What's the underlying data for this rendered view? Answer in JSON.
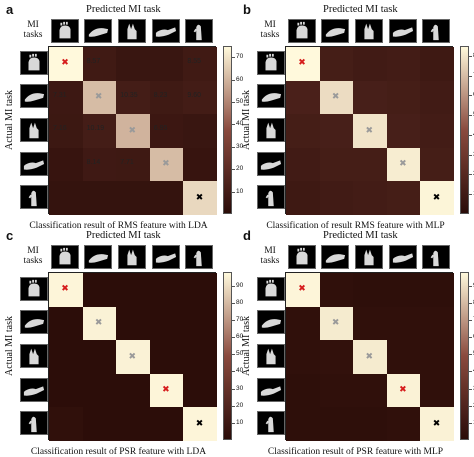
{
  "common": {
    "pred_title": "Predicted MI task",
    "mi_tasks": "MI tasks",
    "actual_label": "Actual MI task"
  },
  "colors": {
    "dark": "#2a0c08",
    "mid": "#8a4a3e",
    "light": "#fff9dc",
    "marker_red": "#d61c1c",
    "marker_gray": "#9a9a9a",
    "marker_black": "#000000"
  },
  "chart_data": [
    {
      "type": "heatmap",
      "panel": "a",
      "title": "Predicted MI task",
      "caption": "Classification result of RMS feature with LDA",
      "ylabel": "Actual MI task",
      "colorbar_range": [
        0,
        75
      ],
      "colorbar_ticks": [
        10,
        20,
        30,
        40,
        50,
        60,
        70
      ],
      "values": [
        [
          75,
          8.57,
          6,
          6,
          8.55
        ],
        [
          7.31,
          62,
          10.35,
          8.23,
          9.6
        ],
        [
          7.16,
          10.19,
          60,
          6.95,
          6
        ],
        [
          5,
          8.14,
          7.71,
          62,
          5
        ],
        [
          4,
          4,
          4,
          4,
          68
        ]
      ],
      "labels": [
        [
          "",
          "8.57",
          "",
          "",
          "8.55"
        ],
        [
          "7.31",
          "",
          "10.35",
          "8.23",
          "9.60"
        ],
        [
          "7.16",
          "10.19",
          "",
          "6.95",
          ""
        ],
        [
          "",
          "8.14",
          "7.71",
          "",
          ""
        ],
        [
          "",
          "",
          "",
          "",
          ""
        ]
      ],
      "markers": [
        "x-red",
        "x-gray",
        "x-gray",
        "x-gray",
        "x-black"
      ]
    },
    {
      "type": "heatmap",
      "panel": "b",
      "title": "Predicted MI task",
      "caption": "Classification of result RMS feature with MLP",
      "ylabel": "Actual MI task",
      "colorbar_range": [
        0,
        85
      ],
      "colorbar_ticks": [
        10,
        20,
        30,
        40,
        50,
        60,
        70,
        80
      ],
      "values": [
        [
          85,
          12,
          10,
          11,
          9
        ],
        [
          14,
          78,
          13,
          12,
          10
        ],
        [
          12,
          13,
          80,
          13,
          11
        ],
        [
          10,
          12,
          12,
          82,
          12
        ],
        [
          9,
          10,
          11,
          12,
          84
        ]
      ],
      "labels": [],
      "markers": [
        "x-red",
        "x-gray",
        "x-gray",
        "x-gray",
        "x-black"
      ]
    },
    {
      "type": "heatmap",
      "panel": "c",
      "title": "Predicted MI task",
      "caption": "Classification result of PSR feature with LDA",
      "ylabel": "Actual MI task",
      "colorbar_range": [
        0,
        98
      ],
      "colorbar_ticks": [
        10,
        20,
        30,
        40,
        50,
        60,
        70,
        80,
        90
      ],
      "values": [
        [
          97,
          1,
          1,
          1,
          1
        ],
        [
          1,
          96,
          1,
          1,
          1
        ],
        [
          1,
          1,
          96,
          1,
          1
        ],
        [
          1,
          1,
          1,
          97,
          1
        ],
        [
          3,
          1,
          1,
          1,
          97
        ]
      ],
      "labels": [],
      "markers": [
        "x-red",
        "x-gray",
        "x-gray",
        "x-red",
        "x-black"
      ]
    },
    {
      "type": "heatmap",
      "panel": "d",
      "title": "Predicted MI task",
      "caption": "Classification result of PSR feature with MLP",
      "ylabel": "Actual MI task",
      "colorbar_range": [
        0,
        98
      ],
      "colorbar_ticks": [
        10,
        20,
        30,
        40,
        50,
        60,
        70,
        80,
        90
      ],
      "values": [
        [
          97,
          3,
          2,
          2,
          2
        ],
        [
          3,
          94,
          3,
          3,
          3
        ],
        [
          3,
          4,
          94,
          3,
          3
        ],
        [
          2,
          3,
          3,
          96,
          3
        ],
        [
          2,
          2,
          2,
          3,
          96
        ]
      ],
      "labels": [],
      "markers": [
        "x-red",
        "x-gray",
        "x-gray",
        "x-red",
        "x-black"
      ]
    }
  ]
}
